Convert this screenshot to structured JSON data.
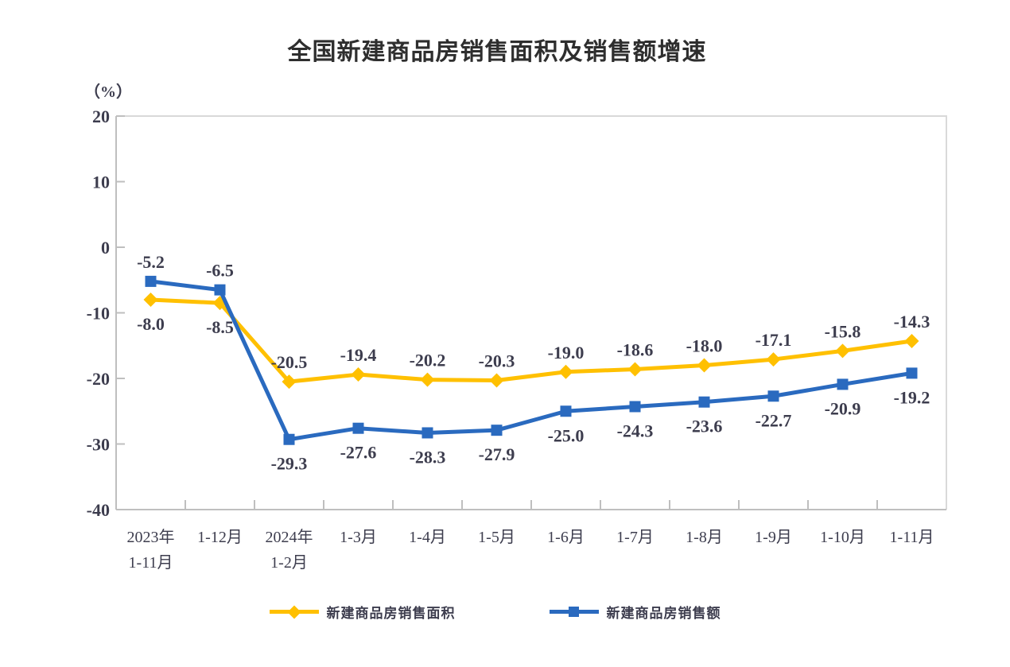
{
  "page": {
    "title": "全国新建商品房销售面积及销售额增速",
    "unit_label": "（%）"
  },
  "chart_data": {
    "type": "line",
    "title": "全国新建商品房销售面积及销售额增速",
    "unit": "（%）",
    "ylim": [
      -40,
      20
    ],
    "yticks": [
      20,
      10,
      0,
      -10,
      -20,
      -30,
      -40
    ],
    "grid": false,
    "legend_position": "bottom",
    "categories": [
      [
        "2023年",
        "1-11月"
      ],
      [
        "1-12月"
      ],
      [
        "2024年",
        "1-2月"
      ],
      [
        "1-3月"
      ],
      [
        "1-4月"
      ],
      [
        "1-5月"
      ],
      [
        "1-6月"
      ],
      [
        "1-7月"
      ],
      [
        "1-8月"
      ],
      [
        "1-9月"
      ],
      [
        "1-10月"
      ],
      [
        "1-11月"
      ]
    ],
    "series": [
      {
        "key": "sales-area",
        "name": "新建商品房销售面积",
        "color": "#FFC000",
        "marker": "diamond",
        "values": [
          -8.0,
          -8.5,
          -20.5,
          -19.4,
          -20.2,
          -20.3,
          -19.0,
          -18.6,
          -18.0,
          -17.1,
          -15.8,
          -14.3
        ],
        "label_position": [
          "below",
          "below",
          "above",
          "above",
          "above",
          "above",
          "above",
          "above",
          "above",
          "above",
          "above",
          "above"
        ]
      },
      {
        "key": "sales-amount",
        "name": "新建商品房销售额",
        "color": "#2A6ABF",
        "marker": "square",
        "values": [
          -5.2,
          -6.5,
          -29.3,
          -27.6,
          -28.3,
          -27.9,
          -25.0,
          -24.3,
          -23.6,
          -22.7,
          -20.9,
          -19.2
        ],
        "label_position": [
          "above",
          "above",
          "below",
          "below",
          "below",
          "below",
          "below",
          "below",
          "below",
          "below",
          "below",
          "below"
        ]
      }
    ],
    "axis_colors": {
      "left_bottom": "#bfbfbf",
      "top_right": "#d9d9d9"
    },
    "text_color": "#3d3d4e"
  }
}
